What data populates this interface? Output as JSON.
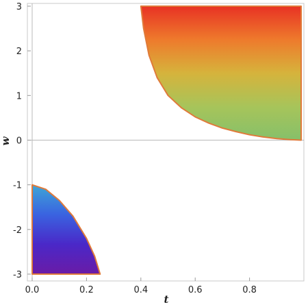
{
  "chart_data": {
    "type": "area",
    "title": "",
    "xlabel": "t",
    "ylabel": "w",
    "xlim": [
      0,
      1
    ],
    "ylim": [
      -3,
      3
    ],
    "x_ticks": [
      {
        "value": 0.0,
        "label": "0.0"
      },
      {
        "value": 0.2,
        "label": "0.2"
      },
      {
        "value": 0.4,
        "label": "0.4"
      },
      {
        "value": 0.6,
        "label": "0.6"
      },
      {
        "value": 0.8,
        "label": "0.8"
      }
    ],
    "y_ticks": [
      {
        "value": -3,
        "label": "-3"
      },
      {
        "value": -2,
        "label": "-2"
      },
      {
        "value": -1,
        "label": "-1"
      },
      {
        "value": 0,
        "label": "0"
      },
      {
        "value": 1,
        "label": "1"
      },
      {
        "value": 2,
        "label": "2"
      },
      {
        "value": 3,
        "label": "3"
      }
    ],
    "grid": false,
    "regions": [
      {
        "boundary": [
          [
            0.4,
            3.0
          ],
          [
            0.41,
            2.5
          ],
          [
            0.43,
            1.9
          ],
          [
            0.46,
            1.4
          ],
          [
            0.5,
            1.0
          ],
          [
            0.55,
            0.72
          ],
          [
            0.6,
            0.52
          ],
          [
            0.65,
            0.38
          ],
          [
            0.7,
            0.27
          ],
          [
            0.75,
            0.19
          ],
          [
            0.8,
            0.12
          ],
          [
            0.85,
            0.07
          ],
          [
            0.9,
            0.035
          ],
          [
            0.95,
            0.012
          ],
          [
            0.99,
            0.0
          ],
          [
            0.99,
            3.0
          ]
        ],
        "gradient": [
          "#e83224",
          "#ee7a2c",
          "#d6b33c",
          "#a7c45a",
          "#86c06a"
        ],
        "outline_color": "#e07a3a"
      },
      {
        "boundary": [
          [
            0.0,
            -1.0
          ],
          [
            0.05,
            -1.1
          ],
          [
            0.1,
            -1.35
          ],
          [
            0.15,
            -1.7
          ],
          [
            0.2,
            -2.2
          ],
          [
            0.23,
            -2.6
          ],
          [
            0.25,
            -3.0
          ],
          [
            0.0,
            -3.0
          ]
        ],
        "gradient": [
          "#3ea6d6",
          "#3a63e0",
          "#4a28c8",
          "#6a1ba6"
        ],
        "outline_color": "#e07a3a"
      }
    ]
  }
}
